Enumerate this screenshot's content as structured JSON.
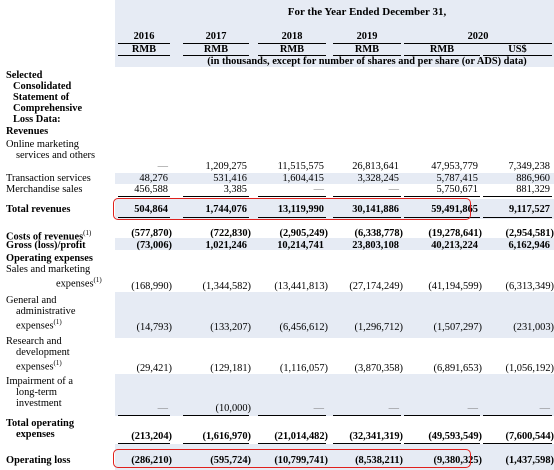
{
  "header": {
    "period": "For the Year Ended December 31,",
    "years": [
      "2016",
      "2017",
      "2018",
      "2019",
      "2020"
    ],
    "currencies": [
      "RMB",
      "RMB",
      "RMB",
      "RMB",
      "RMB",
      "US$"
    ],
    "note": "(in thousands, except for number of shares and per share (or ADS) data)"
  },
  "section_title": [
    "Selected",
    "Consolidated",
    "Statement of",
    "Comprehensive",
    "Loss Data:"
  ],
  "rows": {
    "revenues_head": "Revenues",
    "oms_label": [
      "Online marketing",
      "services and others"
    ],
    "oms": [
      "—",
      "1,209,275",
      "11,515,575",
      "26,813,641",
      "47,953,779",
      "7,349,238"
    ],
    "ts_label": "Transaction services",
    "ts": [
      "48,276",
      "531,416",
      "1,604,415",
      "3,328,245",
      "5,787,415",
      "886,960"
    ],
    "ms_label": "Merchandise sales",
    "ms": [
      "456,588",
      "3,385",
      "—",
      "—",
      "5,750,671",
      "881,329"
    ],
    "tr_label": "Total revenues",
    "tr": [
      "504,864",
      "1,744,076",
      "13,119,990",
      "30,141,886",
      "59,491,865",
      "9,117,527"
    ],
    "cor_label": "Costs of revenues",
    "cor_sup": "(1)",
    "cor": [
      "(577,870)",
      "(722,830)",
      "(2,905,249)",
      "(6,338,778)",
      "(19,278,641)",
      "(2,954,581)"
    ],
    "gp_label": "Gross (loss)/profit",
    "gp": [
      "(73,006)",
      "1,021,246",
      "10,214,741",
      "23,803,108",
      "40,213,224",
      "6,162,946"
    ],
    "opex_head": "Operating expenses",
    "sm_label": [
      "Sales and marketing",
      "expenses"
    ],
    "sm_sup": "(1)",
    "sm": [
      "(168,990)",
      "(1,344,582)",
      "(13,441,813)",
      "(27,174,249)",
      "(41,194,599)",
      "(6,313,349)"
    ],
    "ga_label": [
      "General and",
      "administrative",
      "expenses"
    ],
    "ga_sup": "(1)",
    "ga": [
      "(14,793)",
      "(133,207)",
      "(6,456,612)",
      "(1,296,712)",
      "(1,507,297)",
      "(231,003)"
    ],
    "rd_label": [
      "Research and",
      "development",
      "expenses"
    ],
    "rd_sup": "(1)",
    "rd": [
      "(29,421)",
      "(129,181)",
      "(1,116,057)",
      "(3,870,358)",
      "(6,891,653)",
      "(1,056,192)"
    ],
    "imp_label": [
      "Impairment of a",
      "long-term",
      "investment"
    ],
    "imp": [
      "—",
      "(10,000)",
      "—",
      "—",
      "—",
      "—"
    ],
    "toe_label": [
      "Total operating",
      "expenses"
    ],
    "toe": [
      "(213,204)",
      "(1,616,970)",
      "(21,014,482)",
      "(32,341,319)",
      "(49,593,549)",
      "(7,600,544)"
    ],
    "ol_label": "Operating loss",
    "ol": [
      "(286,210)",
      "(595,724)",
      "(10,799,741)",
      "(8,538,211)",
      "(9,380,325)",
      "(1,437,598)"
    ]
  },
  "colors": {
    "shade": "#e6ebf4",
    "highlight_box": "#e0201c"
  }
}
